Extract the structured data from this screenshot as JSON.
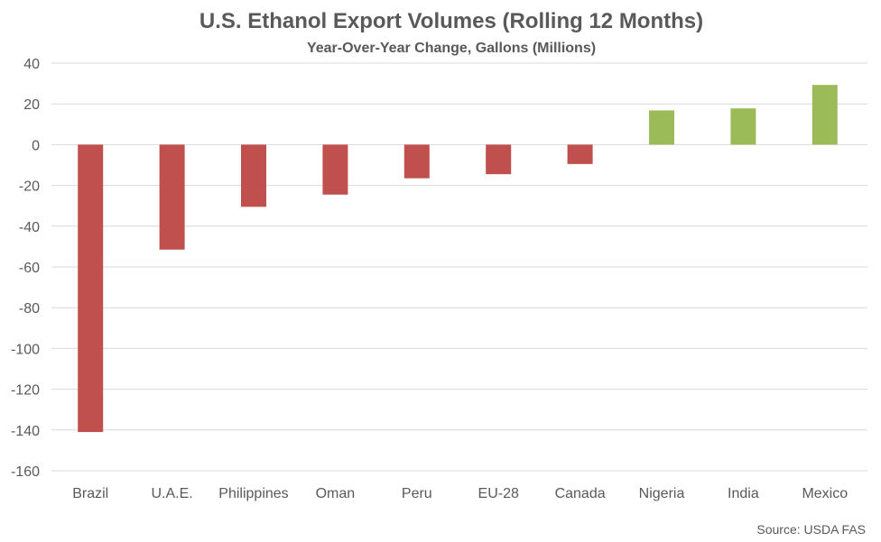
{
  "chart_data": {
    "type": "bar",
    "title": "U.S. Ethanol Export Volumes (Rolling 12 Months)",
    "subtitle": "Year-Over-Year Change, Gallons (Millions)",
    "categories": [
      "Brazil",
      "U.A.E.",
      "Philippines",
      "Oman",
      "Peru",
      "EU-28",
      "Canada",
      "Nigeria",
      "India",
      "Mexico"
    ],
    "values": [
      -141,
      -51.5,
      -30.5,
      -24.5,
      -16.5,
      -14.5,
      -9.5,
      16.8,
      17.8,
      29.3
    ],
    "ylim": [
      -160,
      40
    ],
    "yticks": [
      40,
      20,
      0,
      -20,
      -40,
      -60,
      -80,
      -100,
      -120,
      -140,
      -160
    ],
    "grid": true,
    "legend": "none",
    "colors": {
      "negative": "#c0504d",
      "positive": "#9bbb59",
      "grid": "#d9d9d9",
      "text": "#595959"
    },
    "source": "Source: USDA FAS"
  }
}
